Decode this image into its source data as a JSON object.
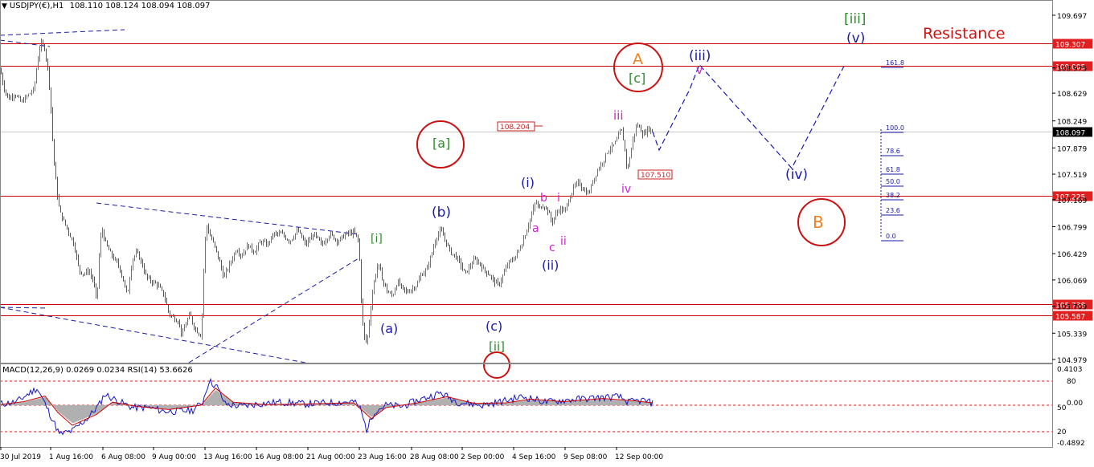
{
  "header": {
    "symbol_info": "USDJPY(€),H1",
    "ohlc": "108.110 108.124 108.094 108.097",
    "arrow_icon": "triangle-down-icon"
  },
  "indicator": {
    "label": "MACD(12,26,9) 0.0269 0.0234 RSI(14) 53.6626",
    "scale_labels": [
      "0.4103",
      "0.00",
      "-0.4892"
    ],
    "rsi_levels": [
      "80",
      "50",
      "20"
    ]
  },
  "annotations": {
    "resistance": "Resistance",
    "waves": [
      {
        "text": "[iii]",
        "color": "#2e8b2e"
      },
      {
        "text": "(v)",
        "color": "#1a1aaa"
      },
      {
        "text": "(iii)",
        "color": "#1a1aaa"
      },
      {
        "text": "v",
        "color": "#d020d0"
      },
      {
        "text": "A",
        "color": "#f08020",
        "circled": true
      },
      {
        "text": "[c]",
        "color": "#2e8b2e"
      },
      {
        "text": "iii",
        "color": "#d020d0"
      },
      {
        "text": "[a]",
        "color": "#2e8b2e",
        "circled": true
      },
      {
        "text": "(i)",
        "color": "#1a1aaa"
      },
      {
        "text": "b",
        "color": "#d020d0"
      },
      {
        "text": "i",
        "color": "#d020d0"
      },
      {
        "text": "(b)",
        "color": "#1a1aaa"
      },
      {
        "text": "a",
        "color": "#d020d0"
      },
      {
        "text": "c",
        "color": "#d020d0"
      },
      {
        "text": "ii",
        "color": "#d020d0"
      },
      {
        "text": "(ii)",
        "color": "#1a1aaa"
      },
      {
        "text": "iv",
        "color": "#d020d0"
      },
      {
        "text": "(iv)",
        "color": "#1a1aaa"
      },
      {
        "text": "B",
        "color": "#f08020",
        "circled": true
      },
      {
        "text": "[i]",
        "color": "#2e8b2e"
      },
      {
        "text": "(a)",
        "color": "#1a1aaa"
      },
      {
        "text": "(c)",
        "color": "#1a1aaa"
      },
      {
        "text": "[ii]",
        "color": "#2e8b2e"
      }
    ],
    "price_tags": [
      "108.204",
      "107.510"
    ],
    "fib_levels": [
      "161.8",
      "100.0",
      "78.6",
      "61.8",
      "50.0",
      "38.2",
      "23.6",
      "0.0"
    ]
  },
  "colors": {
    "bull": "#22aa22",
    "bear": "#cc2222",
    "level_line": "#cc0000",
    "projection": "#1a1aaa",
    "macd_line": "#1515c8",
    "signal_line": "#cc0000",
    "histogram": "#b0b0b0"
  },
  "chart_data": {
    "type": "candlestick",
    "instrument": "USDJPY",
    "timeframe": "H1",
    "last_price": "108.097",
    "y_ticks": [
      "109.697",
      "109.307",
      "108.975",
      "108.629",
      "108.249",
      "107.879",
      "107.519",
      "107.169",
      "106.799",
      "106.429",
      "106.069",
      "105.709",
      "105.339",
      "104.979"
    ],
    "x_ticks": [
      "30 Jul 2019",
      "1 Aug 16:00",
      "6 Aug 08:00",
      "9 Aug 00:00",
      "13 Aug 16:00",
      "16 Aug 08:00",
      "21 Aug 00:00",
      "23 Aug 16:00",
      "28 Aug 08:00",
      "2 Sep 00:00",
      "4 Sep 16:00",
      "9 Sep 08:00",
      "12 Sep 00:00"
    ],
    "horizontal_levels": [
      "109.307",
      "109.005",
      "107.225",
      "105.738",
      "105.587"
    ],
    "ylim": [
      104.95,
      109.85
    ],
    "price_path": [
      [
        0,
        108.95
      ],
      [
        4,
        108.72
      ],
      [
        10,
        108.55
      ],
      [
        18,
        108.62
      ],
      [
        26,
        108.5
      ],
      [
        36,
        108.62
      ],
      [
        42,
        108.68
      ],
      [
        46,
        109.05
      ],
      [
        50,
        109.32
      ],
      [
        55,
        109.25
      ],
      [
        60,
        108.9
      ],
      [
        63,
        108.4
      ],
      [
        66,
        107.8
      ],
      [
        70,
        107.3
      ],
      [
        74,
        107.0
      ],
      [
        80,
        106.85
      ],
      [
        86,
        106.7
      ],
      [
        92,
        106.55
      ],
      [
        98,
        106.2
      ],
      [
        104,
        106.15
      ],
      [
        110,
        106.2
      ],
      [
        116,
        106.05
      ],
      [
        120,
        105.75
      ],
      [
        123,
        106.4
      ],
      [
        126,
        106.8
      ],
      [
        130,
        106.6
      ],
      [
        136,
        106.45
      ],
      [
        142,
        106.35
      ],
      [
        148,
        106.25
      ],
      [
        152,
        106.1
      ],
      [
        158,
        105.85
      ],
      [
        164,
        106.35
      ],
      [
        170,
        106.45
      ],
      [
        176,
        106.3
      ],
      [
        182,
        106.1
      ],
      [
        188,
        106.05
      ],
      [
        196,
        106.0
      ],
      [
        204,
        105.85
      ],
      [
        210,
        105.6
      ],
      [
        216,
        105.55
      ],
      [
        222,
        105.5
      ],
      [
        226,
        105.3
      ],
      [
        230,
        105.45
      ],
      [
        236,
        105.6
      ],
      [
        240,
        105.45
      ],
      [
        246,
        105.35
      ],
      [
        250,
        105.3
      ],
      [
        253,
        106.2
      ],
      [
        256,
        106.85
      ],
      [
        260,
        106.7
      ],
      [
        266,
        106.55
      ],
      [
        272,
        106.35
      ],
      [
        278,
        106.1
      ],
      [
        286,
        106.3
      ],
      [
        294,
        106.5
      ],
      [
        300,
        106.4
      ],
      [
        308,
        106.55
      ],
      [
        316,
        106.45
      ],
      [
        324,
        106.6
      ],
      [
        332,
        106.55
      ],
      [
        340,
        106.7
      ],
      [
        350,
        106.7
      ],
      [
        360,
        106.6
      ],
      [
        370,
        106.75
      ],
      [
        380,
        106.55
      ],
      [
        390,
        106.7
      ],
      [
        400,
        106.55
      ],
      [
        410,
        106.7
      ],
      [
        420,
        106.6
      ],
      [
        430,
        106.7
      ],
      [
        440,
        106.72
      ],
      [
        446,
        106.6
      ],
      [
        449,
        105.8
      ],
      [
        452,
        105.3
      ],
      [
        456,
        105.2
      ],
      [
        460,
        105.6
      ],
      [
        464,
        106.0
      ],
      [
        470,
        106.3
      ],
      [
        476,
        106.05
      ],
      [
        482,
        105.9
      ],
      [
        488,
        105.85
      ],
      [
        494,
        106.05
      ],
      [
        500,
        105.95
      ],
      [
        506,
        105.9
      ],
      [
        512,
        105.95
      ],
      [
        518,
        106.0
      ],
      [
        524,
        106.15
      ],
      [
        530,
        106.2
      ],
      [
        536,
        106.4
      ],
      [
        542,
        106.65
      ],
      [
        548,
        106.75
      ],
      [
        554,
        106.6
      ],
      [
        560,
        106.45
      ],
      [
        566,
        106.4
      ],
      [
        572,
        106.3
      ],
      [
        578,
        106.15
      ],
      [
        584,
        106.25
      ],
      [
        590,
        106.35
      ],
      [
        596,
        106.3
      ],
      [
        602,
        106.2
      ],
      [
        608,
        106.15
      ],
      [
        614,
        106.05
      ],
      [
        620,
        106.0
      ],
      [
        626,
        106.15
      ],
      [
        632,
        106.3
      ],
      [
        638,
        106.35
      ],
      [
        644,
        106.45
      ],
      [
        650,
        106.6
      ],
      [
        656,
        106.8
      ],
      [
        662,
        107.0
      ],
      [
        666,
        107.15
      ],
      [
        670,
        107.05
      ],
      [
        676,
        107.1
      ],
      [
        682,
        107.0
      ],
      [
        686,
        106.85
      ],
      [
        690,
        106.95
      ],
      [
        696,
        107.05
      ],
      [
        702,
        107.0
      ],
      [
        708,
        107.2
      ],
      [
        714,
        107.35
      ],
      [
        720,
        107.4
      ],
      [
        726,
        107.3
      ],
      [
        732,
        107.25
      ],
      [
        738,
        107.45
      ],
      [
        744,
        107.6
      ],
      [
        750,
        107.7
      ],
      [
        756,
        107.85
      ],
      [
        762,
        107.9
      ],
      [
        768,
        108.0
      ],
      [
        772,
        108.15
      ],
      [
        776,
        107.95
      ],
      [
        780,
        107.55
      ],
      [
        783,
        107.75
      ],
      [
        788,
        108.05
      ],
      [
        792,
        108.2
      ],
      [
        796,
        108.15
      ],
      [
        800,
        108.05
      ],
      [
        806,
        108.15
      ],
      [
        812,
        108.1
      ]
    ],
    "projection": [
      [
        812,
        108.1
      ],
      [
        820,
        107.85
      ],
      [
        858,
        108.68
      ],
      [
        870,
        109.02
      ],
      [
        985,
        107.6
      ],
      [
        1050,
        109.0
      ]
    ],
    "macd_path": [
      [
        0,
        0.02
      ],
      [
        20,
        0.05
      ],
      [
        46,
        0.28
      ],
      [
        55,
        0.05
      ],
      [
        66,
        -0.25
      ],
      [
        74,
        -0.48
      ],
      [
        90,
        -0.42
      ],
      [
        110,
        -0.2
      ],
      [
        124,
        0.02
      ],
      [
        130,
        0.18
      ],
      [
        150,
        0.05
      ],
      [
        165,
        -0.04
      ],
      [
        185,
        -0.04
      ],
      [
        205,
        -0.1
      ],
      [
        222,
        -0.1
      ],
      [
        240,
        -0.08
      ],
      [
        252,
        0.05
      ],
      [
        260,
        0.4
      ],
      [
        270,
        0.3
      ],
      [
        280,
        0.02
      ],
      [
        300,
        -0.02
      ],
      [
        320,
        0.02
      ],
      [
        350,
        0.05
      ],
      [
        380,
        0.02
      ],
      [
        410,
        0.04
      ],
      [
        440,
        0.06
      ],
      [
        448,
        -0.05
      ],
      [
        456,
        -0.4
      ],
      [
        466,
        -0.1
      ],
      [
        480,
        0.0
      ],
      [
        500,
        -0.02
      ],
      [
        520,
        0.08
      ],
      [
        548,
        0.2
      ],
      [
        570,
        0.05
      ],
      [
        600,
        0.0
      ],
      [
        620,
        0.05
      ],
      [
        650,
        0.14
      ],
      [
        680,
        0.05
      ],
      [
        700,
        0.08
      ],
      [
        740,
        0.12
      ],
      [
        770,
        0.14
      ],
      [
        782,
        0.05
      ],
      [
        800,
        0.08
      ],
      [
        812,
        0.03
      ]
    ],
    "signal_path": [
      [
        0,
        0.01
      ],
      [
        30,
        0.06
      ],
      [
        56,
        0.15
      ],
      [
        72,
        -0.12
      ],
      [
        90,
        -0.33
      ],
      [
        120,
        -0.15
      ],
      [
        140,
        0.05
      ],
      [
        170,
        -0.02
      ],
      [
        210,
        -0.07
      ],
      [
        250,
        0.0
      ],
      [
        268,
        0.28
      ],
      [
        290,
        0.05
      ],
      [
        330,
        0.01
      ],
      [
        380,
        0.02
      ],
      [
        440,
        0.04
      ],
      [
        462,
        -0.22
      ],
      [
        480,
        -0.04
      ],
      [
        520,
        0.04
      ],
      [
        556,
        0.14
      ],
      [
        590,
        0.03
      ],
      [
        630,
        0.04
      ],
      [
        660,
        0.1
      ],
      [
        700,
        0.06
      ],
      [
        750,
        0.11
      ],
      [
        790,
        0.07
      ],
      [
        812,
        0.04
      ]
    ]
  }
}
